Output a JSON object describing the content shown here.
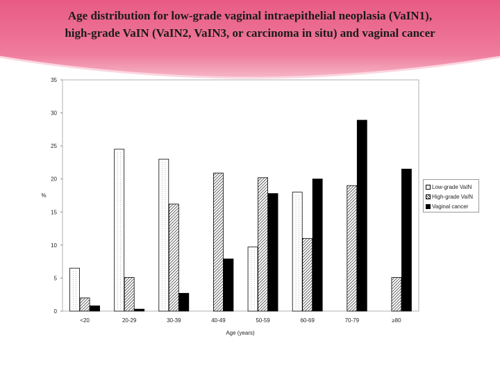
{
  "colors": {
    "banner": "#ec6a8e",
    "banner_light": "#f7b9cb",
    "low_grade": "#ffffff",
    "high_grade": "hatched",
    "cancer": "#000000"
  },
  "slide": {
    "title_line1": "Age distribution for low-grade vaginal intraepithelial neoplasia (VaIN1),",
    "title_line2": "high-grade VaIN (VaIN2, VaIN3, or carcinoma in situ) and vaginal cancer"
  },
  "chart_data": {
    "type": "bar",
    "title": "",
    "xlabel": "Age (years)",
    "ylabel": "%",
    "ylim": [
      0,
      35
    ],
    "yticks": [
      0,
      5,
      10,
      15,
      20,
      25,
      30,
      35
    ],
    "grid": false,
    "legend_position": "right",
    "categories": [
      "<20",
      "20-29",
      "30-39",
      "40-49",
      "50-59",
      "60-69",
      "70-79",
      "≥80"
    ],
    "series": [
      {
        "name": "Low-grade VaIN",
        "values": [
          6.5,
          24.5,
          23,
          0,
          9.7,
          18,
          0,
          0
        ]
      },
      {
        "name": "High-grade VaIN",
        "values": [
          2.0,
          5.1,
          16.2,
          20.9,
          20.2,
          11.0,
          19.0,
          5.1
        ]
      },
      {
        "name": "Vaginal cancer",
        "values": [
          0.8,
          0.3,
          2.7,
          7.9,
          17.8,
          20.0,
          28.9,
          21.5
        ]
      }
    ]
  }
}
